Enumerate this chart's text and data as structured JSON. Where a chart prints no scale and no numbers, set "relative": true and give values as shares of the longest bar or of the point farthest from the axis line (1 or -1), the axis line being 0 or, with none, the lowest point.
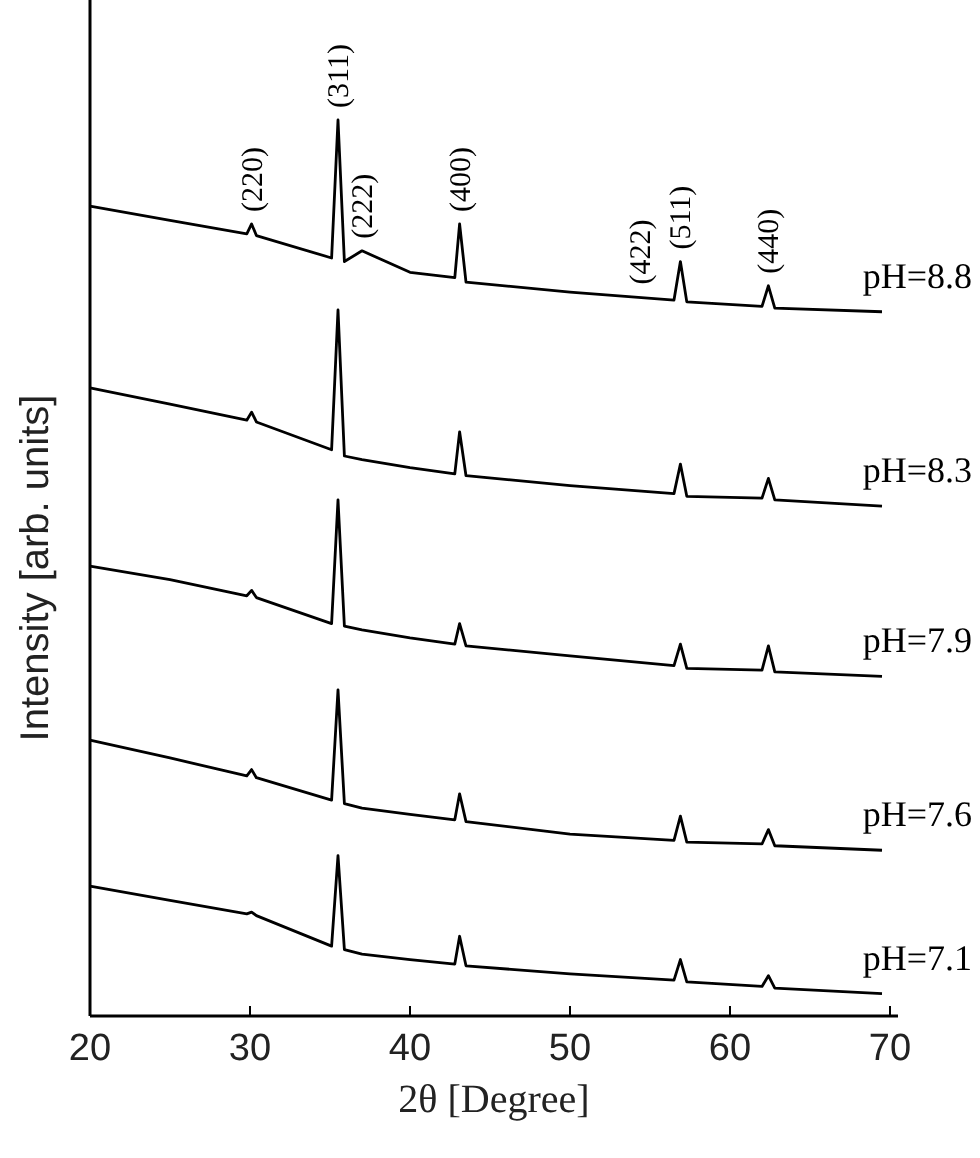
{
  "chart_data": {
    "type": "line",
    "relative": true,
    "xlabel": "2θ [Degree]",
    "ylabel": "Intensity [arb. units]",
    "xlim": [
      20,
      70.5
    ],
    "xticks": [
      20,
      30,
      40,
      50,
      60,
      70
    ],
    "x": [
      20,
      25,
      29.8,
      30.1,
      30.4,
      35.1,
      35.5,
      35.9,
      37,
      40,
      42.8,
      43.1,
      43.5,
      50,
      56.5,
      56.9,
      57.3,
      62,
      62.4,
      62.8,
      69.5
    ],
    "marker": "none",
    "line_style": "solid",
    "grid": false,
    "series": [
      {
        "name": "pH=8.8",
        "color": "#000000",
        "values": [
          0.904,
          0.888,
          0.873,
          0.884,
          0.871,
          0.846,
          1,
          0.842,
          0.854,
          0.83,
          0.824,
          0.884,
          0.819,
          0.808,
          0.799,
          0.842,
          0.797,
          0.792,
          0.815,
          0.79,
          0.786
        ]
      },
      {
        "name": "pH=8.3",
        "color": "#000000",
        "values": [
          0.701,
          0.683,
          0.665,
          0.674,
          0.663,
          0.632,
          0.788,
          0.625,
          0.621,
          0.612,
          0.605,
          0.652,
          0.603,
          0.592,
          0.583,
          0.616,
          0.58,
          0.578,
          0.6,
          0.576,
          0.569
        ]
      },
      {
        "name": "pH=7.9",
        "color": "#000000",
        "values": [
          0.502,
          0.487,
          0.469,
          0.475,
          0.467,
          0.438,
          0.576,
          0.435,
          0.431,
          0.422,
          0.415,
          0.438,
          0.413,
          0.402,
          0.391,
          0.415,
          0.388,
          0.386,
          0.413,
          0.384,
          0.379
        ]
      },
      {
        "name": "pH=7.6",
        "color": "#000000",
        "values": [
          0.308,
          0.288,
          0.268,
          0.275,
          0.266,
          0.241,
          0.364,
          0.237,
          0.232,
          0.225,
          0.219,
          0.248,
          0.217,
          0.203,
          0.196,
          0.223,
          0.194,
          0.192,
          0.208,
          0.19,
          0.185
        ]
      },
      {
        "name": "pH=7.1",
        "color": "#000000",
        "values": [
          0.145,
          0.129,
          0.114,
          0.116,
          0.112,
          0.078,
          0.179,
          0.074,
          0.069,
          0.063,
          0.058,
          0.089,
          0.056,
          0.047,
          0.04,
          0.063,
          0.038,
          0.033,
          0.045,
          0.031,
          0.025
        ]
      }
    ],
    "annotations": [
      {
        "text": "(220)",
        "x": 30.1,
        "y": 0.884
      },
      {
        "text": "(311)",
        "x": 35.5,
        "y": 1
      },
      {
        "text": "(222)",
        "x": 37,
        "y": 0.854
      },
      {
        "text": "(400)",
        "x": 43.1,
        "y": 0.884
      },
      {
        "text": "(422)",
        "x": 54.4,
        "y": 0.803
      },
      {
        "text": "(511)",
        "x": 56.9,
        "y": 0.842
      },
      {
        "text": "(440)",
        "x": 62.4,
        "y": 0.815
      }
    ]
  }
}
